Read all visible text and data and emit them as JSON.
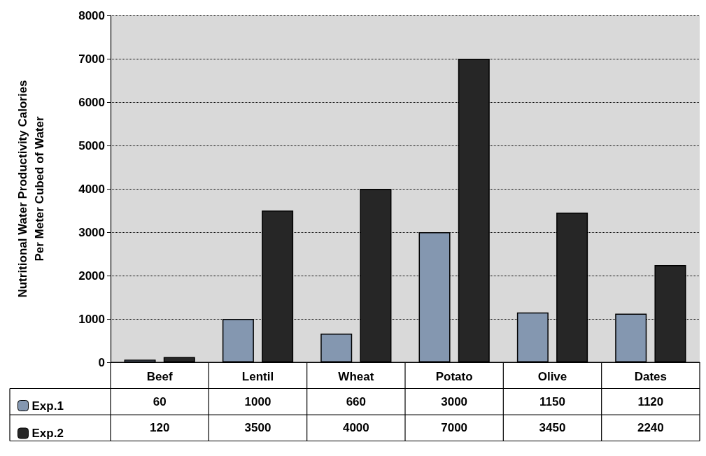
{
  "chart_data": {
    "type": "bar",
    "ylabel": "Nutritional Water Productivity Calories\nPer Meter Cubed of Water",
    "categories": [
      "Beef",
      "Lentil",
      "Wheat",
      "Potato",
      "Olive",
      "Dates"
    ],
    "series": [
      {
        "name": "Exp.1",
        "color": "#8497b0",
        "values": [
          60,
          1000,
          660,
          3000,
          1150,
          1120
        ]
      },
      {
        "name": "Exp.2",
        "color": "#262626",
        "values": [
          120,
          3500,
          4000,
          7000,
          3450,
          2240
        ]
      }
    ],
    "ylim": [
      0,
      8000
    ],
    "yticks": [
      0,
      1000,
      2000,
      3000,
      4000,
      5000,
      6000,
      7000,
      8000
    ],
    "grid": "y",
    "legend": "bottom left",
    "data_labels": true
  }
}
